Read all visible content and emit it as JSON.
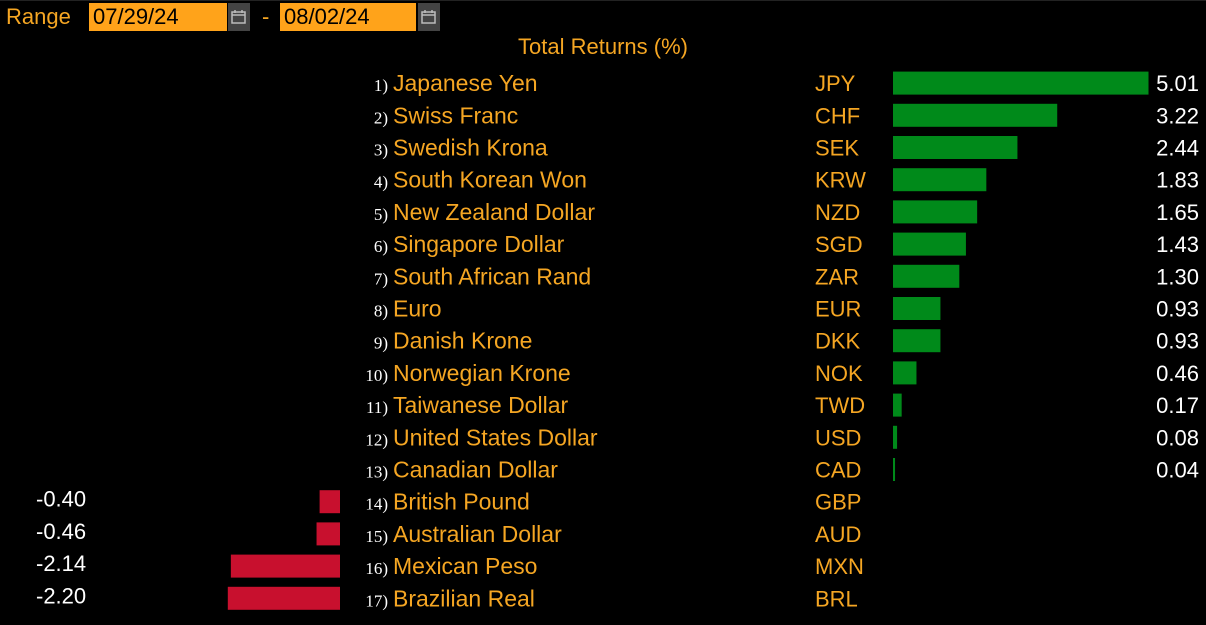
{
  "header": {
    "range_label": "Range",
    "start_date": "07/29/24",
    "end_date": "08/02/24",
    "separator": "-"
  },
  "chart_data": {
    "type": "bar",
    "title": "Total Returns (%)",
    "orientation": "horizontal-diverging",
    "positive_color": "#008a1a",
    "negative_color": "#c8102e",
    "rows": [
      {
        "rank": "1)",
        "name": "Japanese Yen",
        "code": "JPY",
        "value": 5.01,
        "label": "5.01"
      },
      {
        "rank": "2)",
        "name": "Swiss Franc",
        "code": "CHF",
        "value": 3.22,
        "label": "3.22"
      },
      {
        "rank": "3)",
        "name": "Swedish Krona",
        "code": "SEK",
        "value": 2.44,
        "label": "2.44"
      },
      {
        "rank": "4)",
        "name": "South Korean Won",
        "code": "KRW",
        "value": 1.83,
        "label": "1.83"
      },
      {
        "rank": "5)",
        "name": "New Zealand Dollar",
        "code": "NZD",
        "value": 1.65,
        "label": "1.65"
      },
      {
        "rank": "6)",
        "name": "Singapore Dollar",
        "code": "SGD",
        "value": 1.43,
        "label": "1.43"
      },
      {
        "rank": "7)",
        "name": "South African Rand",
        "code": "ZAR",
        "value": 1.3,
        "label": "1.30"
      },
      {
        "rank": "8)",
        "name": "Euro",
        "code": "EUR",
        "value": 0.93,
        "label": "0.93"
      },
      {
        "rank": "9)",
        "name": "Danish Krone",
        "code": "DKK",
        "value": 0.93,
        "label": "0.93"
      },
      {
        "rank": "10)",
        "name": "Norwegian Krone",
        "code": "NOK",
        "value": 0.46,
        "label": "0.46"
      },
      {
        "rank": "11)",
        "name": "Taiwanese Dollar",
        "code": "TWD",
        "value": 0.17,
        "label": "0.17"
      },
      {
        "rank": "12)",
        "name": "United States Dollar",
        "code": "USD",
        "value": 0.08,
        "label": "0.08"
      },
      {
        "rank": "13)",
        "name": "Canadian Dollar",
        "code": "CAD",
        "value": 0.04,
        "label": "0.04"
      },
      {
        "rank": "14)",
        "name": "British Pound",
        "code": "GBP",
        "value": -0.4,
        "label": "-0.40"
      },
      {
        "rank": "15)",
        "name": "Australian Dollar",
        "code": "AUD",
        "value": -0.46,
        "label": "-0.46"
      },
      {
        "rank": "16)",
        "name": "Mexican Peso",
        "code": "MXN",
        "value": -2.14,
        "label": "-2.14"
      },
      {
        "rank": "17)",
        "name": "Brazilian Real",
        "code": "BRL",
        "value": -2.2,
        "label": "-2.20"
      }
    ]
  }
}
